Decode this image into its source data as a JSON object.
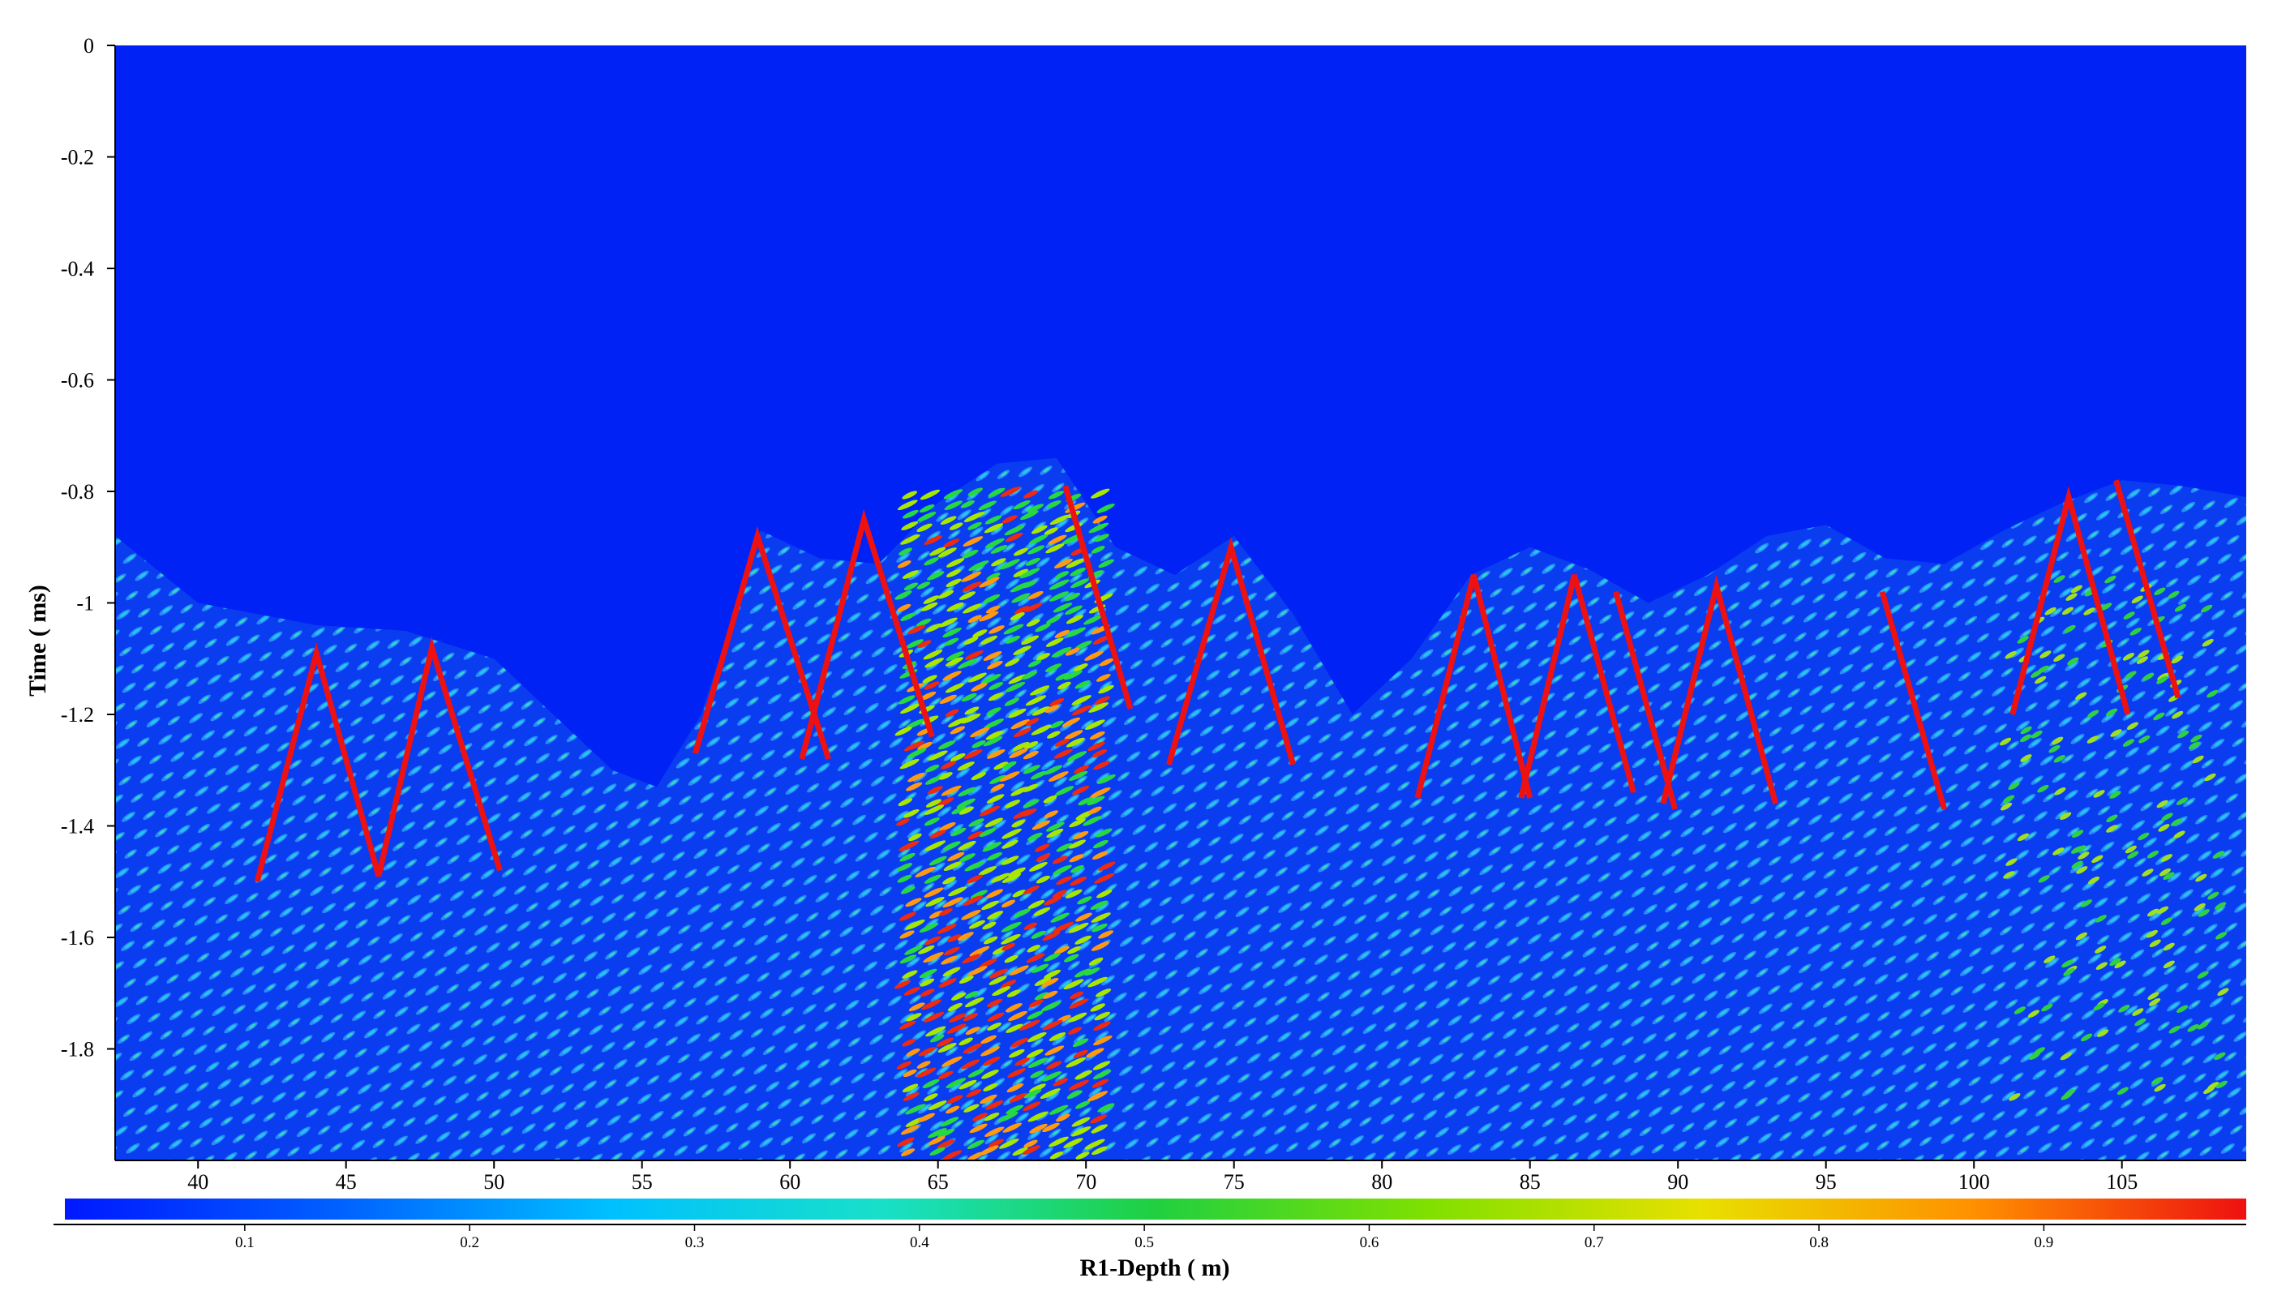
{
  "chart_data": {
    "type": "heatmap",
    "title": "",
    "xlabel": "R1-Depth ( m)",
    "ylabel": "Time ( ms)",
    "xlim": [
      37.2,
      109.2
    ],
    "ylim": [
      -2.0,
      0
    ],
    "xticks": [
      "40",
      "45",
      "50",
      "55",
      "60",
      "65",
      "70",
      "75",
      "80",
      "85",
      "90",
      "95",
      "100",
      "105"
    ],
    "yticks": [
      "0",
      "-0.2",
      "-0.4",
      "-0.6",
      "-0.8",
      "-1",
      "-1.2",
      "-1.4",
      "-1.6",
      "-1.8"
    ],
    "colorbar": {
      "ticks": [
        "0.1",
        "0.2",
        "0.3",
        "0.4",
        "0.5",
        "0.6",
        "0.7",
        "0.8",
        "0.9"
      ],
      "range": [
        0.02,
        0.99
      ],
      "colors": [
        "#0018ff",
        "#0060ff",
        "#00c0ff",
        "#18e0c8",
        "#20d040",
        "#80e000",
        "#e8e000",
        "#ff9000",
        "#ee1010"
      ]
    },
    "background_color": "#0022f5",
    "signal_top_profile": {
      "x": [
        37.2,
        40,
        44,
        47,
        50,
        52,
        54,
        55.5,
        57,
        59,
        61,
        63,
        65,
        67,
        69,
        71,
        73,
        75,
        77,
        79,
        81,
        83,
        85,
        87,
        89,
        91,
        93,
        95,
        97,
        99,
        101,
        103,
        105,
        107,
        109.2
      ],
      "y": [
        -0.88,
        -1.0,
        -1.04,
        -1.05,
        -1.1,
        -1.2,
        -1.3,
        -1.33,
        -1.2,
        -0.87,
        -0.92,
        -0.93,
        -0.82,
        -0.75,
        -0.74,
        -0.9,
        -0.95,
        -0.88,
        -1.02,
        -1.2,
        -1.1,
        -0.95,
        -0.9,
        -0.94,
        -1.0,
        -0.95,
        -0.88,
        -0.86,
        -0.92,
        -0.93,
        -0.87,
        -0.82,
        -0.78,
        -0.79,
        -0.81
      ]
    },
    "annotation_lines": {
      "color": "#ee1111",
      "segments": [
        {
          "x": [
            42.0,
            44.0,
            46.1,
            47.9,
            50.2
          ],
          "y": [
            -1.5,
            -1.09,
            -1.49,
            -1.08,
            -1.48
          ]
        },
        {
          "x": [
            56.8,
            58.9,
            61.3
          ],
          "y": [
            -1.27,
            -0.88,
            -1.28
          ]
        },
        {
          "x": [
            60.4,
            62.5,
            64.8
          ],
          "y": [
            -1.28,
            -0.85,
            -1.24
          ]
        },
        {
          "x": [
            69.3,
            71.5
          ],
          "y": [
            -0.79,
            -1.19
          ]
        },
        {
          "x": [
            72.8,
            74.9,
            77.0
          ],
          "y": [
            -1.29,
            -0.9,
            -1.29
          ]
        },
        {
          "x": [
            81.2,
            83.1,
            85.0
          ],
          "y": [
            -1.35,
            -0.95,
            -1.35
          ]
        },
        {
          "x": [
            84.7,
            86.5,
            88.5
          ],
          "y": [
            -1.35,
            -0.95,
            -1.34
          ]
        },
        {
          "x": [
            87.9,
            89.9
          ],
          "y": [
            -0.98,
            -1.37
          ]
        },
        {
          "x": [
            89.5,
            91.3,
            93.3
          ],
          "y": [
            -1.36,
            -0.97,
            -1.36
          ]
        },
        {
          "x": [
            96.9,
            99.0
          ],
          "y": [
            -0.98,
            -1.37
          ]
        },
        {
          "x": [
            101.3,
            103.2,
            105.2
          ],
          "y": [
            -1.2,
            -0.81,
            -1.2
          ]
        },
        {
          "x": [
            104.8,
            106.9
          ],
          "y": [
            -0.78,
            -1.17
          ]
        }
      ]
    }
  }
}
